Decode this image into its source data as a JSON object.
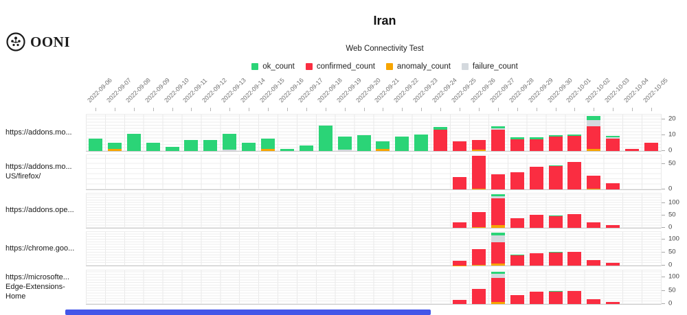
{
  "header": {
    "logo_text": "OONI",
    "title": "Iran",
    "subtitle": "Web Connectivity Test"
  },
  "legend": [
    {
      "label": "ok_count",
      "color": "#2bd477"
    },
    {
      "label": "confirmed_count",
      "color": "#fa2d41"
    },
    {
      "label": "anomaly_count",
      "color": "#f7a500"
    },
    {
      "label": "failure_count",
      "color": "#d4d9de"
    }
  ],
  "scrollbar": {
    "visible": true,
    "color": "#4356e8"
  },
  "chart_data": {
    "type": "bar",
    "stacked": true,
    "title": "Iran",
    "subtitle": "Web Connectivity Test",
    "legend_position": "top",
    "grid": true,
    "y_axis_side": "right",
    "stack_order": [
      "anomaly_count",
      "confirmed_count",
      "failure_count",
      "ok_count"
    ],
    "colors": {
      "ok_count": "#2bd477",
      "confirmed_count": "#fa2d41",
      "anomaly_count": "#f7a500",
      "failure_count": "#d4d9de"
    },
    "x": [
      "2022-09-06",
      "2022-09-07",
      "2022-09-08",
      "2022-09-09",
      "2022-09-10",
      "2022-09-11",
      "2022-09-12",
      "2022-09-13",
      "2022-09-14",
      "2022-09-15",
      "2022-09-16",
      "2022-09-17",
      "2022-09-18",
      "2022-09-19",
      "2022-09-20",
      "2022-09-21",
      "2022-09-22",
      "2022-09-23",
      "2022-09-24",
      "2022-09-25",
      "2022-09-26",
      "2022-09-27",
      "2022-09-28",
      "2022-09-29",
      "2022-09-30",
      "2022-10-01",
      "2022-10-02",
      "2022-10-03",
      "2022-10-04",
      "2022-10-05"
    ],
    "facets": [
      {
        "label_lines": [
          "https://addons.mo..."
        ],
        "ylim": [
          0,
          23
        ],
        "yticks": [
          0,
          10,
          20
        ],
        "grid_minor_unit": 2,
        "series": {
          "anomaly_count": [
            0,
            1.5,
            0,
            0,
            0,
            0,
            0,
            0,
            0,
            1.5,
            0,
            0,
            0,
            0,
            0,
            1.5,
            0,
            0,
            0,
            0,
            1,
            0,
            0,
            0,
            0,
            0,
            1.5,
            0,
            0,
            0
          ],
          "confirmed_count": [
            0,
            0,
            0,
            0,
            0,
            0,
            0,
            0,
            0,
            0,
            0,
            0,
            0,
            0,
            0,
            0,
            0,
            0,
            13.5,
            6,
            6,
            13.5,
            7.5,
            7.5,
            9,
            9.5,
            14,
            8,
            1.5,
            5
          ],
          "failure_count": [
            0,
            0,
            0,
            0,
            0,
            0,
            0,
            1,
            0,
            0,
            0,
            0,
            0,
            1,
            0,
            0,
            0,
            0,
            0,
            0,
            0,
            1,
            0,
            0,
            0,
            0,
            4,
            0.5,
            0,
            0
          ],
          "ok_count": [
            8,
            3.5,
            11,
            5,
            2.5,
            7,
            7,
            10,
            5,
            6.5,
            1.5,
            3.5,
            16,
            8,
            10,
            4.5,
            9,
            10.5,
            1.5,
            0,
            0,
            1,
            1,
            1,
            1,
            1,
            2.5,
            1,
            0,
            0
          ]
        }
      },
      {
        "label_lines": [
          "https://addons.mo...",
          "US/firefox/"
        ],
        "ylim": [
          0,
          67
        ],
        "yticks": [
          0,
          50
        ],
        "grid_minor_unit": 10,
        "series": {
          "anomaly_count": [
            0,
            0,
            0,
            0,
            0,
            0,
            0,
            0,
            0,
            0,
            0,
            0,
            0,
            0,
            0,
            0,
            0,
            0,
            0,
            0,
            1,
            0,
            0,
            0,
            0,
            0,
            1,
            0,
            0,
            0
          ],
          "confirmed_count": [
            0,
            0,
            0,
            0,
            0,
            0,
            0,
            0,
            0,
            0,
            0,
            0,
            0,
            0,
            0,
            0,
            0,
            0,
            0,
            24,
            65,
            29,
            33,
            44,
            46,
            53,
            26,
            12,
            0,
            0
          ],
          "failure_count": [
            0,
            0,
            0,
            0,
            0,
            0,
            0,
            0,
            0,
            0,
            0,
            0,
            0,
            0,
            0,
            0,
            0,
            0,
            0,
            0,
            0,
            0,
            0,
            0,
            0,
            0,
            0,
            0,
            0,
            0
          ],
          "ok_count": [
            0,
            0,
            0,
            0,
            0,
            0,
            0,
            0,
            0,
            0,
            0,
            0,
            0,
            0,
            0,
            0,
            0,
            0,
            0,
            0,
            0,
            0,
            0,
            0,
            1.5,
            0,
            0,
            0,
            0,
            0
          ]
        }
      },
      {
        "label_lines": [
          "https://addons.ope..."
        ],
        "ylim": [
          0,
          137
        ],
        "yticks": [
          0,
          50,
          100
        ],
        "grid_minor_unit": 10,
        "series": {
          "anomaly_count": [
            0,
            0,
            0,
            0,
            0,
            0,
            0,
            0,
            0,
            0,
            0,
            0,
            0,
            0,
            0,
            0,
            0,
            0,
            0,
            0,
            3,
            11,
            0,
            0,
            0,
            0,
            0,
            0,
            0,
            0
          ],
          "confirmed_count": [
            0,
            0,
            0,
            0,
            0,
            0,
            0,
            0,
            0,
            0,
            0,
            0,
            0,
            0,
            0,
            0,
            0,
            0,
            0,
            21,
            61,
            107,
            38,
            52,
            49,
            55,
            23,
            11,
            0,
            0
          ],
          "failure_count": [
            0,
            0,
            0,
            0,
            0,
            0,
            0,
            0,
            0,
            0,
            0,
            0,
            0,
            0,
            0,
            0,
            0,
            0,
            0,
            0,
            0,
            9,
            0,
            0,
            0,
            0,
            0,
            0,
            0,
            0
          ],
          "ok_count": [
            0,
            0,
            0,
            0,
            0,
            0,
            0,
            0,
            0,
            0,
            0,
            0,
            0,
            0,
            0,
            0,
            0,
            0,
            0,
            0,
            0,
            7.5,
            0,
            0,
            1.5,
            0,
            0,
            0,
            0,
            0
          ]
        }
      },
      {
        "label_lines": [
          "https://chrome.goo..."
        ],
        "ylim": [
          0,
          129
        ],
        "yticks": [
          0,
          50,
          100
        ],
        "grid_minor_unit": 10,
        "series": {
          "anomaly_count": [
            0,
            0,
            0,
            0,
            0,
            0,
            0,
            0,
            0,
            0,
            0,
            0,
            0,
            0,
            0,
            0,
            0,
            0,
            0,
            1,
            2,
            8,
            0,
            0,
            0,
            0,
            0,
            0,
            0,
            0
          ],
          "confirmed_count": [
            0,
            0,
            0,
            0,
            0,
            0,
            0,
            0,
            0,
            0,
            0,
            0,
            0,
            0,
            0,
            0,
            0,
            0,
            0,
            17,
            60,
            81,
            40,
            47,
            51,
            52,
            21,
            10,
            0,
            0
          ],
          "failure_count": [
            0,
            0,
            0,
            0,
            0,
            0,
            0,
            0,
            0,
            0,
            0,
            0,
            0,
            0,
            0,
            0,
            0,
            0,
            0,
            0,
            0,
            28,
            0,
            0,
            0,
            0,
            0,
            0,
            0,
            0
          ],
          "ok_count": [
            0,
            0,
            0,
            0,
            0,
            0,
            0,
            0,
            0,
            0,
            0,
            0,
            0,
            0,
            0,
            0,
            0,
            0,
            0,
            0,
            0,
            9,
            1.5,
            0,
            1.5,
            0,
            0,
            0,
            0,
            0
          ]
        }
      },
      {
        "label_lines": [
          "https://microsofte...",
          "Edge-Extensions-",
          "Home"
        ],
        "ylim": [
          0,
          127
        ],
        "yticks": [
          0,
          50,
          100
        ],
        "grid_minor_unit": 10,
        "series": {
          "anomaly_count": [
            0,
            0,
            0,
            0,
            0,
            0,
            0,
            0,
            0,
            0,
            0,
            0,
            0,
            0,
            0,
            0,
            0,
            0,
            0,
            0,
            0,
            7,
            0,
            0,
            0,
            0,
            0,
            0,
            0,
            0
          ],
          "confirmed_count": [
            0,
            0,
            0,
            0,
            0,
            0,
            0,
            0,
            0,
            0,
            0,
            0,
            0,
            0,
            0,
            0,
            0,
            0,
            0,
            16,
            57,
            92,
            33,
            46,
            49,
            49,
            18,
            8,
            0,
            0
          ],
          "failure_count": [
            0,
            0,
            0,
            0,
            0,
            0,
            0,
            0,
            0,
            0,
            0,
            0,
            0,
            0,
            0,
            0,
            0,
            0,
            0,
            0,
            0,
            15,
            0,
            0,
            0,
            0,
            0,
            0,
            0,
            0
          ],
          "ok_count": [
            0,
            0,
            0,
            0,
            0,
            0,
            0,
            0,
            0,
            0,
            0,
            0,
            0,
            0,
            0,
            0,
            0,
            0,
            0,
            0,
            0,
            8,
            0,
            0,
            1.5,
            0,
            0,
            0,
            0,
            0
          ]
        }
      }
    ]
  }
}
